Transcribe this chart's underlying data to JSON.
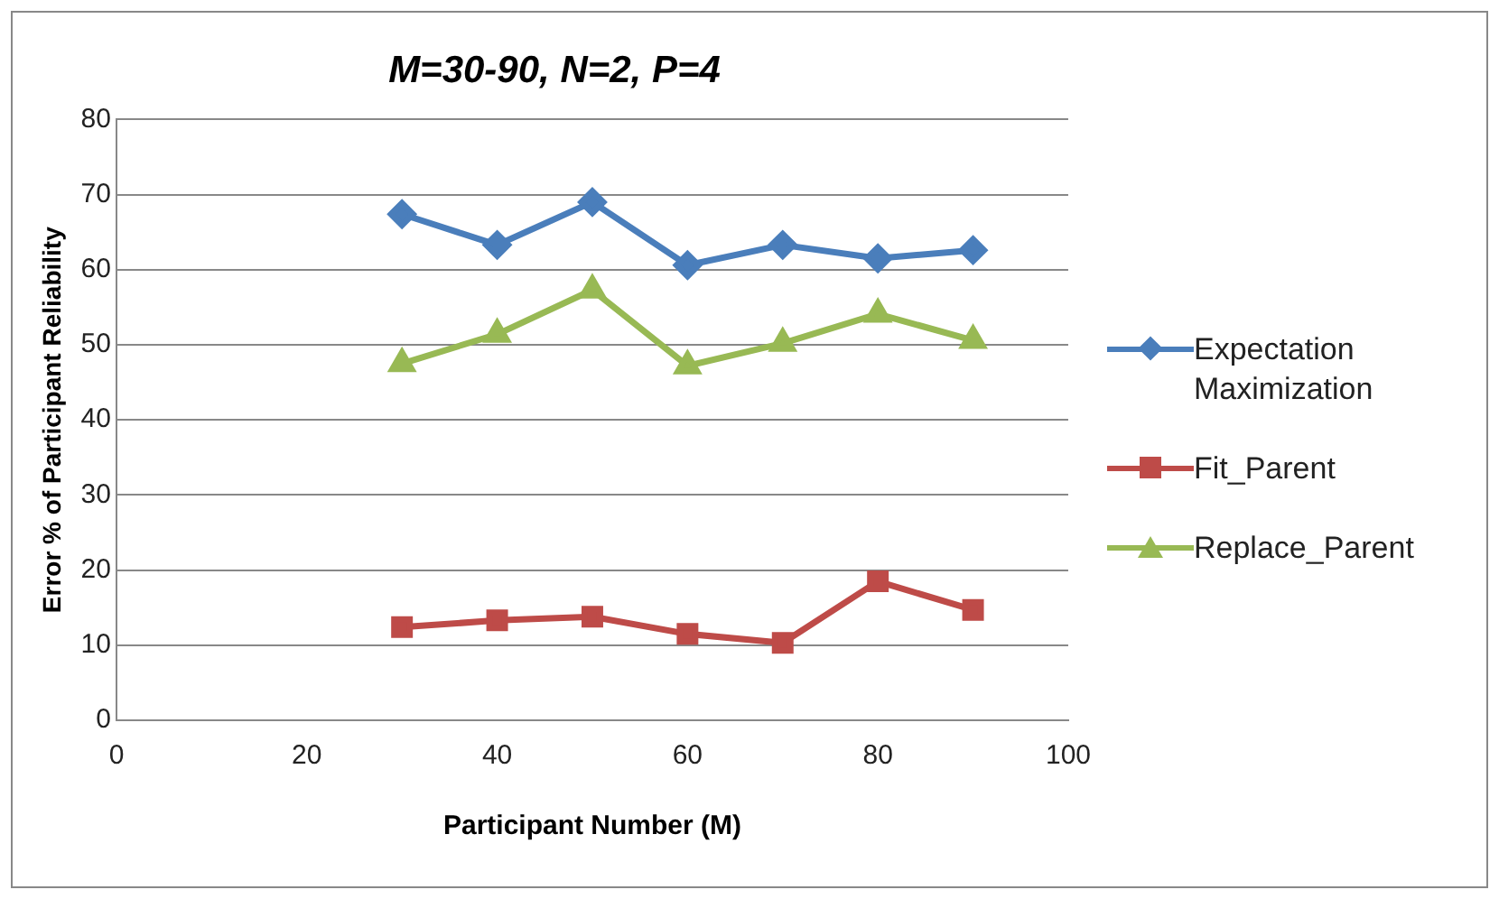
{
  "chart_data": {
    "type": "line",
    "title": "M=30-90, N=2, P=4",
    "xlabel": "Participant Number (M)",
    "ylabel": "Error % of Participant Reliability",
    "x": [
      30,
      40,
      50,
      60,
      70,
      80,
      90
    ],
    "series": [
      {
        "name": "Expectation Maximization",
        "color": "#4a7ebb",
        "marker": "diamond",
        "values": [
          67.4,
          63.3,
          69.0,
          60.6,
          63.3,
          61.5,
          62.6
        ]
      },
      {
        "name": "Fit_Parent",
        "color": "#be4b48",
        "marker": "square",
        "values": [
          12.4,
          13.3,
          13.8,
          11.5,
          10.3,
          18.5,
          14.7
        ]
      },
      {
        "name": "Replace_Parent",
        "color": "#98b954",
        "marker": "triangle",
        "values": [
          47.5,
          51.4,
          57.3,
          47.2,
          50.2,
          54.1,
          50.6
        ]
      }
    ],
    "xlim": [
      0,
      100
    ],
    "xticks": [
      0,
      20,
      40,
      60,
      80,
      100
    ],
    "ylim": [
      0,
      80
    ],
    "yticks": [
      0,
      10,
      20,
      30,
      40,
      50,
      60,
      70,
      80
    ],
    "grid": "y",
    "legend": "right"
  }
}
